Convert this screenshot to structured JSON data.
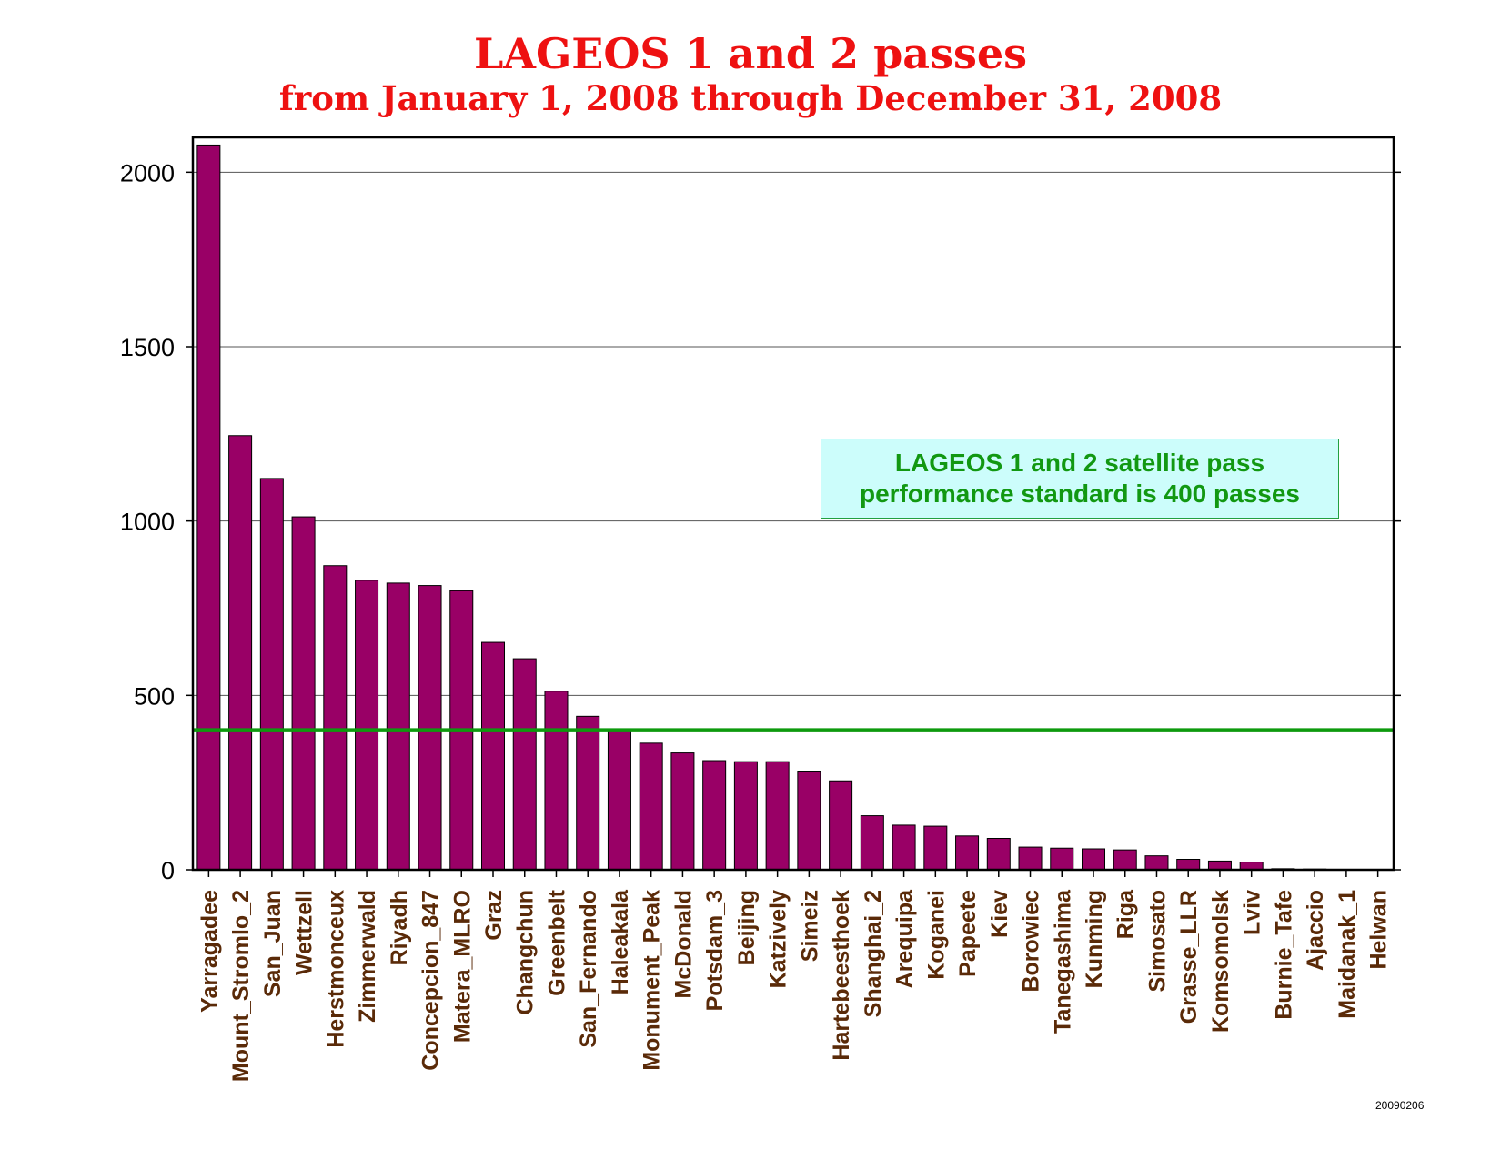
{
  "header": {
    "title": "LAGEOS 1 and 2 passes",
    "subtitle": "from January 1, 2008 through December 31, 2008"
  },
  "annotation": {
    "line1": "LAGEOS 1 and 2 satellite pass",
    "line2": "performance standard is 400 passes"
  },
  "footer": {
    "stamp": "20090206"
  },
  "colors": {
    "bar": "#990066",
    "threshold_line": "#0d9a0d",
    "title": "#ee1111",
    "category_label": "#5a2a08"
  },
  "chart_data": {
    "type": "bar",
    "title": "LAGEOS 1 and 2 passes",
    "subtitle": "from January 1, 2008 through December 31, 2008",
    "xlabel": "",
    "ylabel": "",
    "ylim": [
      0,
      2100
    ],
    "yticks": [
      0,
      500,
      1000,
      1500,
      2000
    ],
    "grid": true,
    "reference_line": {
      "value": 400,
      "label": "LAGEOS 1 and 2 satellite pass performance standard is 400 passes"
    },
    "categories": [
      "Yarragadee",
      "Mount_Stromlo_2",
      "San_Juan",
      "Wettzell",
      "Herstmonceux",
      "Zimmerwald",
      "Riyadh",
      "Concepcion_847",
      "Matera_MLRO",
      "Graz",
      "Changchun",
      "Greenbelt",
      "San_Fernando",
      "Haleakala",
      "Monument_Peak",
      "McDonald",
      "Potsdam_3",
      "Beijing",
      "Katzively",
      "Simeiz",
      "Hartebeesthoek",
      "Shanghai_2",
      "Arequipa",
      "Koganei",
      "Papeete",
      "Kiev",
      "Borowiec",
      "Tanegashima",
      "Kunming",
      "Riga",
      "Simosato",
      "Grasse_LLR",
      "Komsomolsk",
      "Lviv",
      "Burnie_Tafe",
      "Ajaccio",
      "Maidanak_1",
      "Helwan"
    ],
    "values": [
      2078,
      1245,
      1122,
      1012,
      872,
      830,
      822,
      815,
      800,
      652,
      605,
      512,
      440,
      400,
      363,
      335,
      313,
      310,
      310,
      283,
      255,
      155,
      128,
      125,
      97,
      90,
      65,
      62,
      60,
      57,
      40,
      30,
      25,
      22,
      3,
      2,
      1,
      1
    ]
  }
}
